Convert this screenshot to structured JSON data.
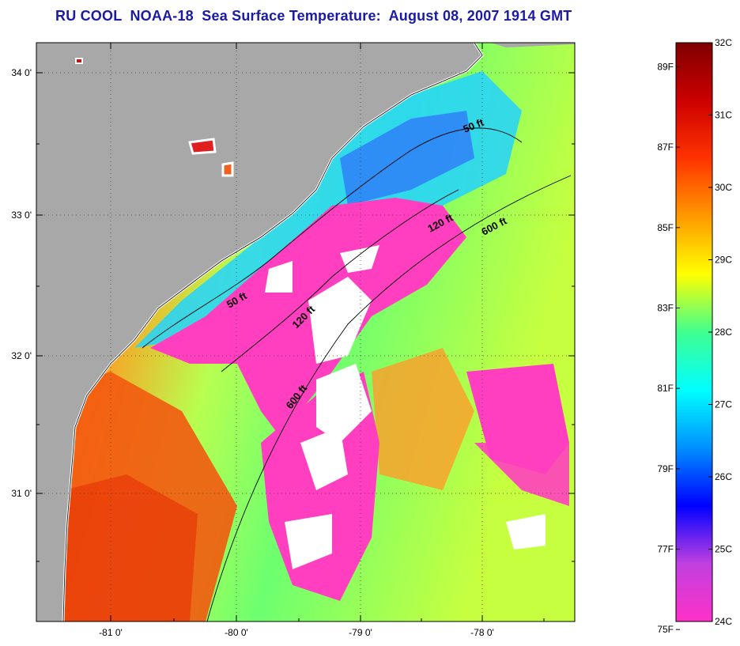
{
  "title": "RU COOL  NOAA-18  Sea Surface Temperature:  August 08, 2007 1914 GMT",
  "map": {
    "lat_labels": [
      "34 0'",
      "33 0'",
      "32 0'",
      "31 0'"
    ],
    "lon_labels": [
      "-81 0'",
      "-80 0'",
      "-79 0'",
      "-78 0'"
    ],
    "contours": {
      "labels": [
        "50 ft",
        "120 ft",
        "600 ft",
        "50 ft",
        "120 ft",
        "600 ft"
      ]
    },
    "colors": {
      "land": "#a8a8a8",
      "cold": "#ff3fbf",
      "cloud": "#ffffff",
      "warm": "#f25a10",
      "mid": "#7fff5a",
      "cool": "#22d3ff"
    }
  },
  "colorbar": {
    "fahrenheit": [
      "89F",
      "87F",
      "85F",
      "83F",
      "81F",
      "79F",
      "77F",
      "75F"
    ],
    "celsius": [
      "32C",
      "31C",
      "30C",
      "29C",
      "28C",
      "27C",
      "26C",
      "25C",
      "24C"
    ],
    "stops": [
      "#ff30c8",
      "#c040e0",
      "#0000ff",
      "#0090ff",
      "#00ffff",
      "#40ff90",
      "#ffff00",
      "#ff9900",
      "#ff3300",
      "#cc0000",
      "#800000"
    ]
  }
}
